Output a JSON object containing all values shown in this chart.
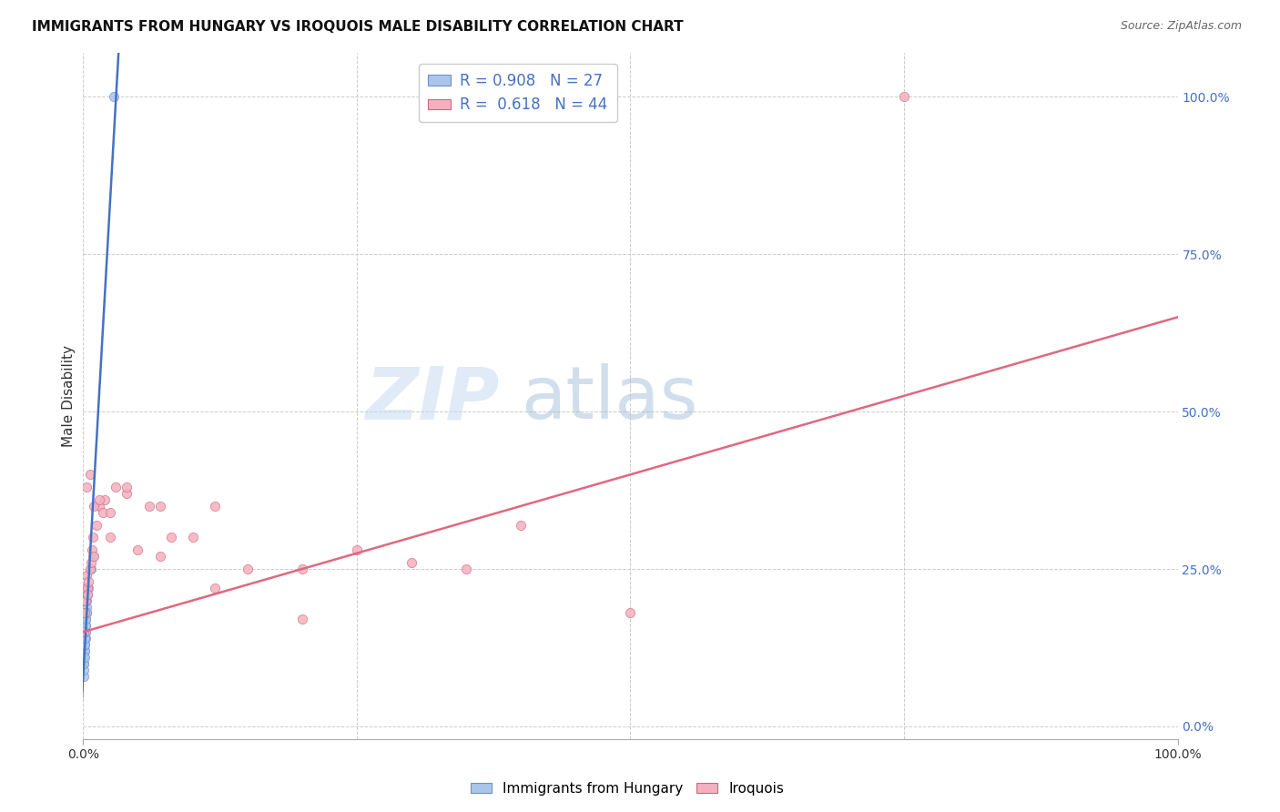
{
  "title": "IMMIGRANTS FROM HUNGARY VS IROQUOIS MALE DISABILITY CORRELATION CHART",
  "source": "Source: ZipAtlas.com",
  "ylabel": "Male Disability",
  "legend_blue_label": "Immigrants from Hungary",
  "legend_pink_label": "Iroquois",
  "legend_blue_r": "R = 0.908",
  "legend_blue_n": "N = 27",
  "legend_pink_r": "R =  0.618",
  "legend_pink_n": "N = 44",
  "blue_scatter_x": [
    0.05,
    0.08,
    0.1,
    0.12,
    0.15,
    0.18,
    0.2,
    0.22,
    0.25,
    0.28,
    0.3,
    0.05,
    0.07,
    0.09,
    0.11,
    0.14,
    0.16,
    0.19,
    0.21,
    0.24,
    0.27,
    0.32,
    0.35,
    0.5,
    0.7,
    0.9,
    2.8
  ],
  "blue_scatter_y": [
    10,
    11,
    12,
    12,
    13,
    14,
    15,
    16,
    17,
    18,
    19,
    8,
    9,
    10,
    11,
    13,
    14,
    15,
    16,
    17,
    18,
    20,
    21,
    22,
    25,
    27,
    100
  ],
  "pink_scatter_x": [
    0.05,
    0.1,
    0.15,
    0.2,
    0.25,
    0.3,
    0.35,
    0.4,
    0.5,
    0.6,
    0.7,
    0.8,
    0.9,
    1.0,
    1.2,
    1.5,
    1.8,
    2.0,
    2.5,
    3.0,
    4.0,
    5.0,
    6.0,
    7.0,
    8.0,
    10.0,
    12.0,
    15.0,
    20.0,
    25.0,
    30.0,
    40.0,
    50.0,
    0.3,
    0.6,
    1.0,
    1.5,
    2.5,
    4.0,
    7.0,
    12.0,
    20.0,
    35.0,
    75.0
  ],
  "pink_scatter_y": [
    15,
    18,
    20,
    20,
    22,
    24,
    22,
    21,
    23,
    25,
    26,
    28,
    30,
    27,
    32,
    35,
    34,
    36,
    34,
    38,
    37,
    28,
    35,
    35,
    30,
    30,
    22,
    25,
    17,
    28,
    26,
    32,
    18,
    38,
    40,
    35,
    36,
    30,
    38,
    27,
    35,
    25,
    25,
    100
  ],
  "blue_line_x0": 0,
  "blue_line_y0": 8,
  "blue_line_x1": 3.0,
  "blue_line_y1": 100,
  "pink_line_x0": 0,
  "pink_line_y0": 15,
  "pink_line_x1": 100,
  "pink_line_y1": 65,
  "background_color": "#ffffff",
  "grid_color": "#cccccc",
  "blue_color": "#aac5ea",
  "blue_line_color": "#4472c4",
  "pink_color": "#f4b0c0",
  "pink_line_color": "#e06880",
  "scatter_size": 55,
  "xlim": [
    0,
    100
  ],
  "ylim": [
    -2,
    107
  ],
  "yticks": [
    0,
    25,
    50,
    75,
    100
  ],
  "ytick_labels": [
    "0.0%",
    "25.0%",
    "50.0%",
    "75.0%",
    "100.0%"
  ],
  "xticks": [
    0,
    100
  ],
  "xtick_labels": [
    "0.0%",
    "100.0%"
  ]
}
